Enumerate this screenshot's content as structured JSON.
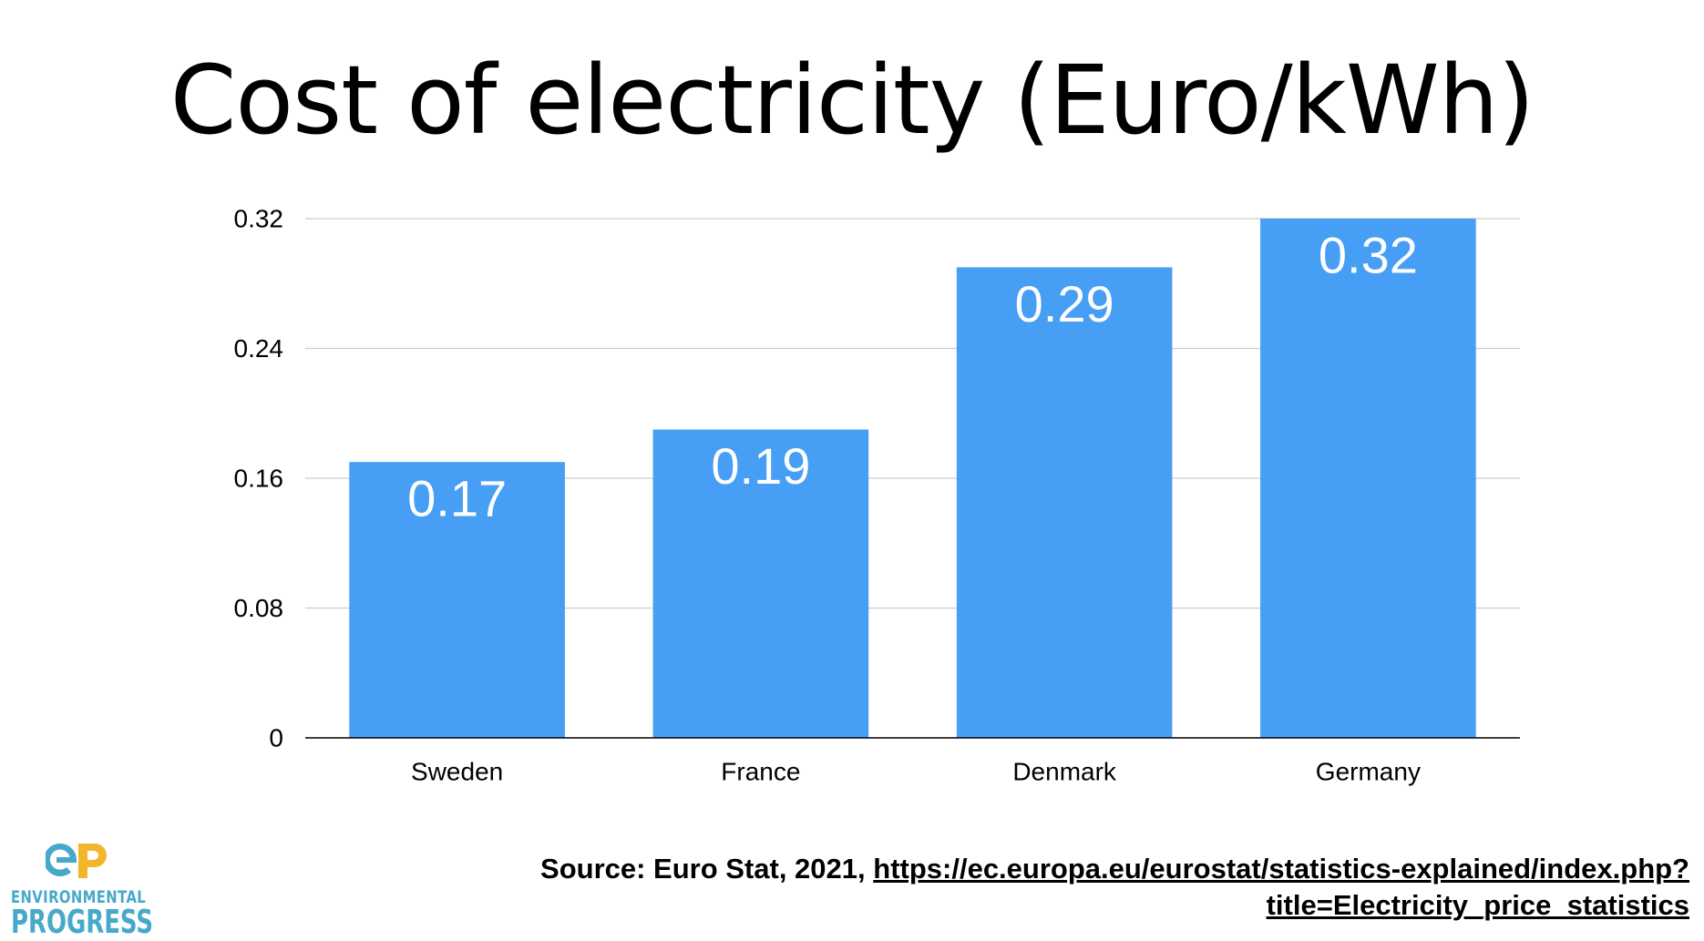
{
  "slide": {
    "title": "Cost of electricity (Euro/kWh)"
  },
  "chart_data": {
    "type": "bar",
    "categories": [
      "Sweden",
      "France",
      "Denmark",
      "Germany"
    ],
    "values": [
      0.17,
      0.19,
      0.29,
      0.32
    ],
    "data_labels": [
      "0.17",
      "0.19",
      "0.29",
      "0.32"
    ],
    "ylim": [
      0,
      0.32
    ],
    "yticks": [
      0,
      0.08,
      0.16,
      0.24,
      0.32
    ],
    "ytick_labels": [
      "0",
      "0.08",
      "0.16",
      "0.24",
      "0.32"
    ],
    "grid": true,
    "bar_color": "#469ff5",
    "label_color": "#ffffff",
    "grid_color": "#cccccc"
  },
  "source": {
    "prefix": "Source: Euro Stat, 2021,",
    "url_line1": "https://ec.europa.eu/eurostat/statistics-explained/index.php?",
    "url_line2": "title=Electricity_price_statistics"
  },
  "logo": {
    "line1": "ENVIRONMENTAL",
    "line2": "PROGRESS",
    "icon": "ep-logo-icon",
    "colors": {
      "blue": "#46a9c9",
      "gold": "#f2b62b"
    }
  }
}
